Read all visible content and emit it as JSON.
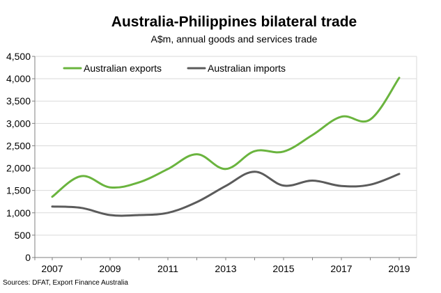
{
  "chart_data": {
    "type": "line",
    "title": "Australia-Philippines bilateral trade",
    "subtitle": "A$m, annual goods and services trade",
    "source": "Sources: DFAT, Export Finance Australia",
    "xlabel": "",
    "ylabel": "",
    "x": [
      2007,
      2008,
      2009,
      2010,
      2011,
      2012,
      2013,
      2014,
      2015,
      2016,
      2017,
      2018,
      2019
    ],
    "x_tick_labels": [
      "2007",
      "2009",
      "2011",
      "2013",
      "2015",
      "2017",
      "2019"
    ],
    "x_tick_values": [
      2007,
      2009,
      2011,
      2013,
      2015,
      2017,
      2019
    ],
    "y_tick_labels": [
      "0",
      "500",
      "1,000",
      "1,500",
      "2,000",
      "2,500",
      "3,000",
      "3,500",
      "4,000",
      "4,500"
    ],
    "y_tick_values": [
      0,
      500,
      1000,
      1500,
      2000,
      2500,
      3000,
      3500,
      4000,
      4500
    ],
    "xlim": [
      2007,
      2019
    ],
    "ylim": [
      0,
      4500
    ],
    "grid": true,
    "legend_position": "top-left",
    "series": [
      {
        "name": "Australian exports",
        "color": "#6ab43e",
        "values": [
          1360,
          1820,
          1570,
          1680,
          1980,
          2310,
          1980,
          2380,
          2370,
          2740,
          3150,
          3090,
          4020
        ]
      },
      {
        "name": "Australian imports",
        "color": "#5b5b5b",
        "values": [
          1140,
          1110,
          950,
          950,
          1000,
          1240,
          1600,
          1920,
          1610,
          1720,
          1600,
          1630,
          1870
        ]
      }
    ]
  }
}
